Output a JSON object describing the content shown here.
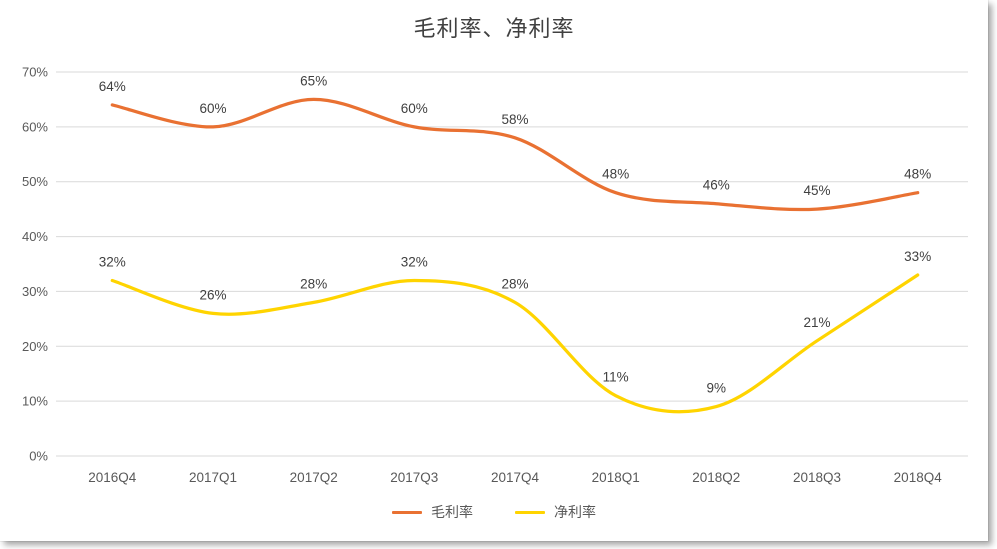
{
  "title": "毛利率、净利率",
  "chart_data": {
    "type": "line",
    "title": "毛利率、净利率",
    "categories": [
      "2016Q4",
      "2017Q1",
      "2017Q2",
      "2017Q3",
      "2017Q4",
      "2018Q1",
      "2018Q2",
      "2018Q3",
      "2018Q4"
    ],
    "series": [
      {
        "name": "毛利率",
        "color": "#E97132",
        "values": [
          64,
          60,
          65,
          60,
          58,
          48,
          46,
          45,
          48
        ]
      },
      {
        "name": "净利率",
        "color": "#FFD400",
        "values": [
          32,
          26,
          28,
          32,
          28,
          11,
          9,
          21,
          33
        ]
      }
    ],
    "xlabel": "",
    "ylabel": "",
    "ylim": [
      0,
      70
    ],
    "ytick_step": 10,
    "ytick_suffix": "%",
    "grid": true,
    "smooth_lines": true,
    "data_labels": true,
    "legend_position": "bottom"
  },
  "colors": {
    "grid_line": "#D9D9D9",
    "axis_text": "#595959",
    "data_label_text": "#404040",
    "title_text": "#404040"
  }
}
